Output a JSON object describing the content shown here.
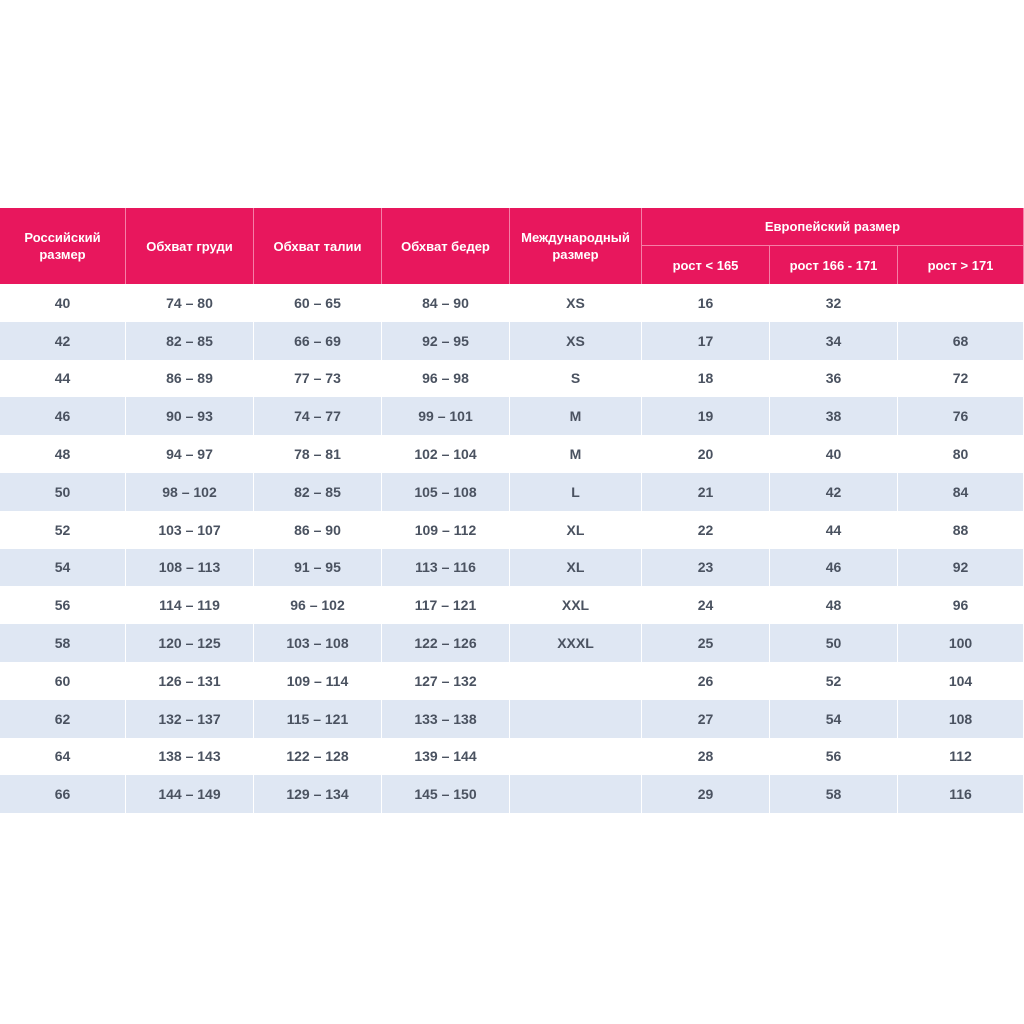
{
  "header": {
    "columns": [
      "Российский размер",
      "Обхват груди",
      "Обхват талии",
      "Обхват бедер",
      "Международный размер"
    ],
    "group": "Европейский размер",
    "subcolumns": [
      "рост < 165",
      "рост 166 - 171",
      "рост > 171"
    ]
  },
  "table": {
    "rows": [
      [
        "40",
        "74 – 80",
        "60 – 65",
        "84 – 90",
        "XS",
        "16",
        "32",
        null
      ],
      [
        "42",
        "82 – 85",
        "66 – 69",
        "92 – 95",
        "XS",
        "17",
        "34",
        "68"
      ],
      [
        "44",
        "86 – 89",
        "77 – 73",
        "96 – 98",
        "S",
        "18",
        "36",
        "72"
      ],
      [
        "46",
        "90 – 93",
        "74 – 77",
        "99 – 101",
        "M",
        "19",
        "38",
        "76"
      ],
      [
        "48",
        "94 – 97",
        "78 – 81",
        "102 – 104",
        "M",
        "20",
        "40",
        "80"
      ],
      [
        "50",
        "98 – 102",
        "82 – 85",
        "105 – 108",
        "L",
        "21",
        "42",
        "84"
      ],
      [
        "52",
        "103 – 107",
        "86 – 90",
        "109 – 112",
        "XL",
        "22",
        "44",
        "88"
      ],
      [
        "54",
        "108 – 113",
        "91 – 95",
        "113 – 116",
        "XL",
        "23",
        "46",
        "92"
      ],
      [
        "56",
        "114 – 119",
        "96 – 102",
        "117 – 121",
        "XXL",
        "24",
        "48",
        "96"
      ],
      [
        "58",
        "120 – 125",
        "103 – 108",
        "122 – 126",
        "XXXL",
        "25",
        "50",
        "100"
      ],
      [
        "60",
        "126 – 131",
        "109 – 114",
        "127 – 132",
        null,
        "26",
        "52",
        "104"
      ],
      [
        "62",
        "132 – 137",
        "115 – 121",
        "133 – 138",
        null,
        "27",
        "54",
        "108"
      ],
      [
        "64",
        "138 – 143",
        "122 – 128",
        "139 – 144",
        null,
        "28",
        "56",
        "112"
      ],
      [
        "66",
        "144 – 149",
        "129 – 134",
        "145 – 150",
        null,
        "29",
        "58",
        "116"
      ]
    ]
  }
}
